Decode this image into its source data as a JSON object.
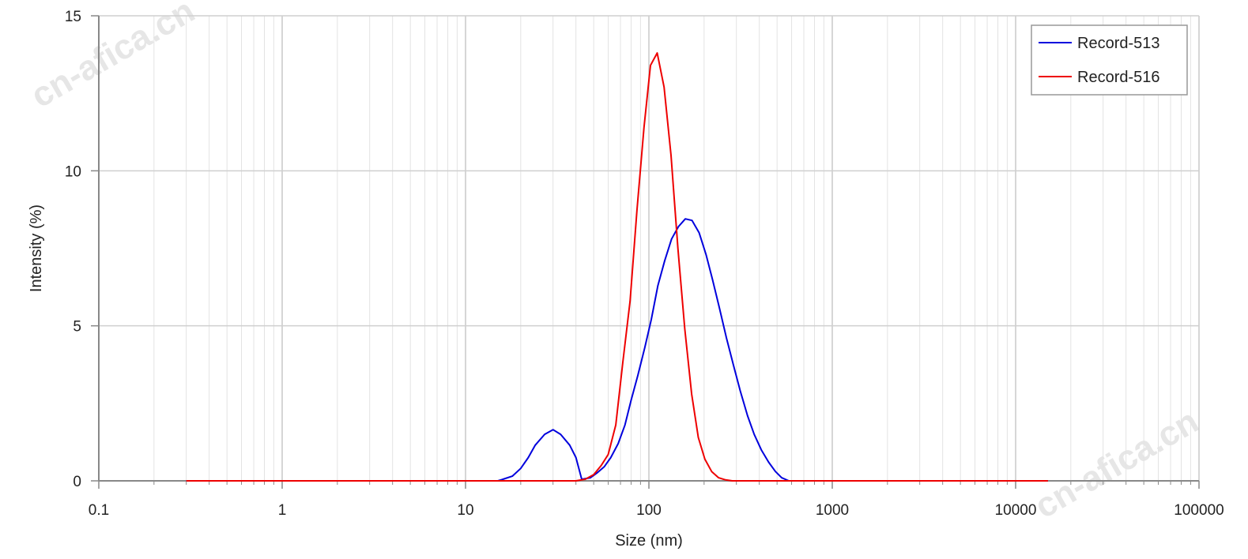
{
  "watermark": "cn-afica.cn",
  "chart_data": {
    "type": "line",
    "title": "",
    "xlabel": "Size (nm)",
    "ylabel": "Intensity (%)",
    "xscale": "log",
    "xlim": [
      0.1,
      100000
    ],
    "ylim": [
      0,
      15
    ],
    "x_ticks": [
      "0.1",
      "1",
      "10",
      "100",
      "1000",
      "10000",
      "100000"
    ],
    "y_ticks": [
      "0",
      "5",
      "10",
      "15"
    ],
    "grid": true,
    "legend_position": "top-right",
    "series": [
      {
        "name": "Record-513",
        "color": "#0000dd",
        "x": [
          0.3,
          15,
          16,
          18,
          20,
          22,
          24,
          27,
          30,
          33,
          37,
          40,
          43,
          48,
          52,
          57,
          62,
          68,
          74,
          80,
          87,
          95,
          103,
          112,
          122,
          133,
          145,
          158,
          172,
          188,
          205,
          222,
          242,
          265,
          290,
          315,
          345,
          375,
          410,
          450,
          490,
          530,
          580,
          15000
        ],
        "y": [
          0,
          0,
          0.05,
          0.15,
          0.4,
          0.75,
          1.15,
          1.5,
          1.65,
          1.5,
          1.15,
          0.75,
          0.05,
          0.1,
          0.25,
          0.45,
          0.75,
          1.2,
          1.8,
          2.6,
          3.4,
          4.3,
          5.2,
          6.3,
          7.1,
          7.8,
          8.2,
          8.45,
          8.4,
          8.0,
          7.3,
          6.5,
          5.6,
          4.6,
          3.7,
          2.9,
          2.1,
          1.5,
          1.0,
          0.6,
          0.3,
          0.1,
          0,
          0
        ]
      },
      {
        "name": "Record-516",
        "color": "#ee0000",
        "x": [
          0.3,
          40,
          45,
          50,
          55,
          60,
          66,
          72,
          79,
          86,
          94,
          102,
          111,
          121,
          132,
          144,
          157,
          171,
          186,
          202,
          220,
          240,
          262,
          285,
          310,
          340,
          15000
        ],
        "y": [
          0,
          0,
          0.05,
          0.2,
          0.5,
          0.85,
          1.8,
          3.8,
          5.8,
          8.7,
          11.4,
          13.4,
          13.8,
          12.7,
          10.5,
          7.5,
          4.9,
          2.8,
          1.4,
          0.7,
          0.3,
          0.1,
          0.03,
          0,
          0,
          0,
          0
        ]
      }
    ]
  }
}
